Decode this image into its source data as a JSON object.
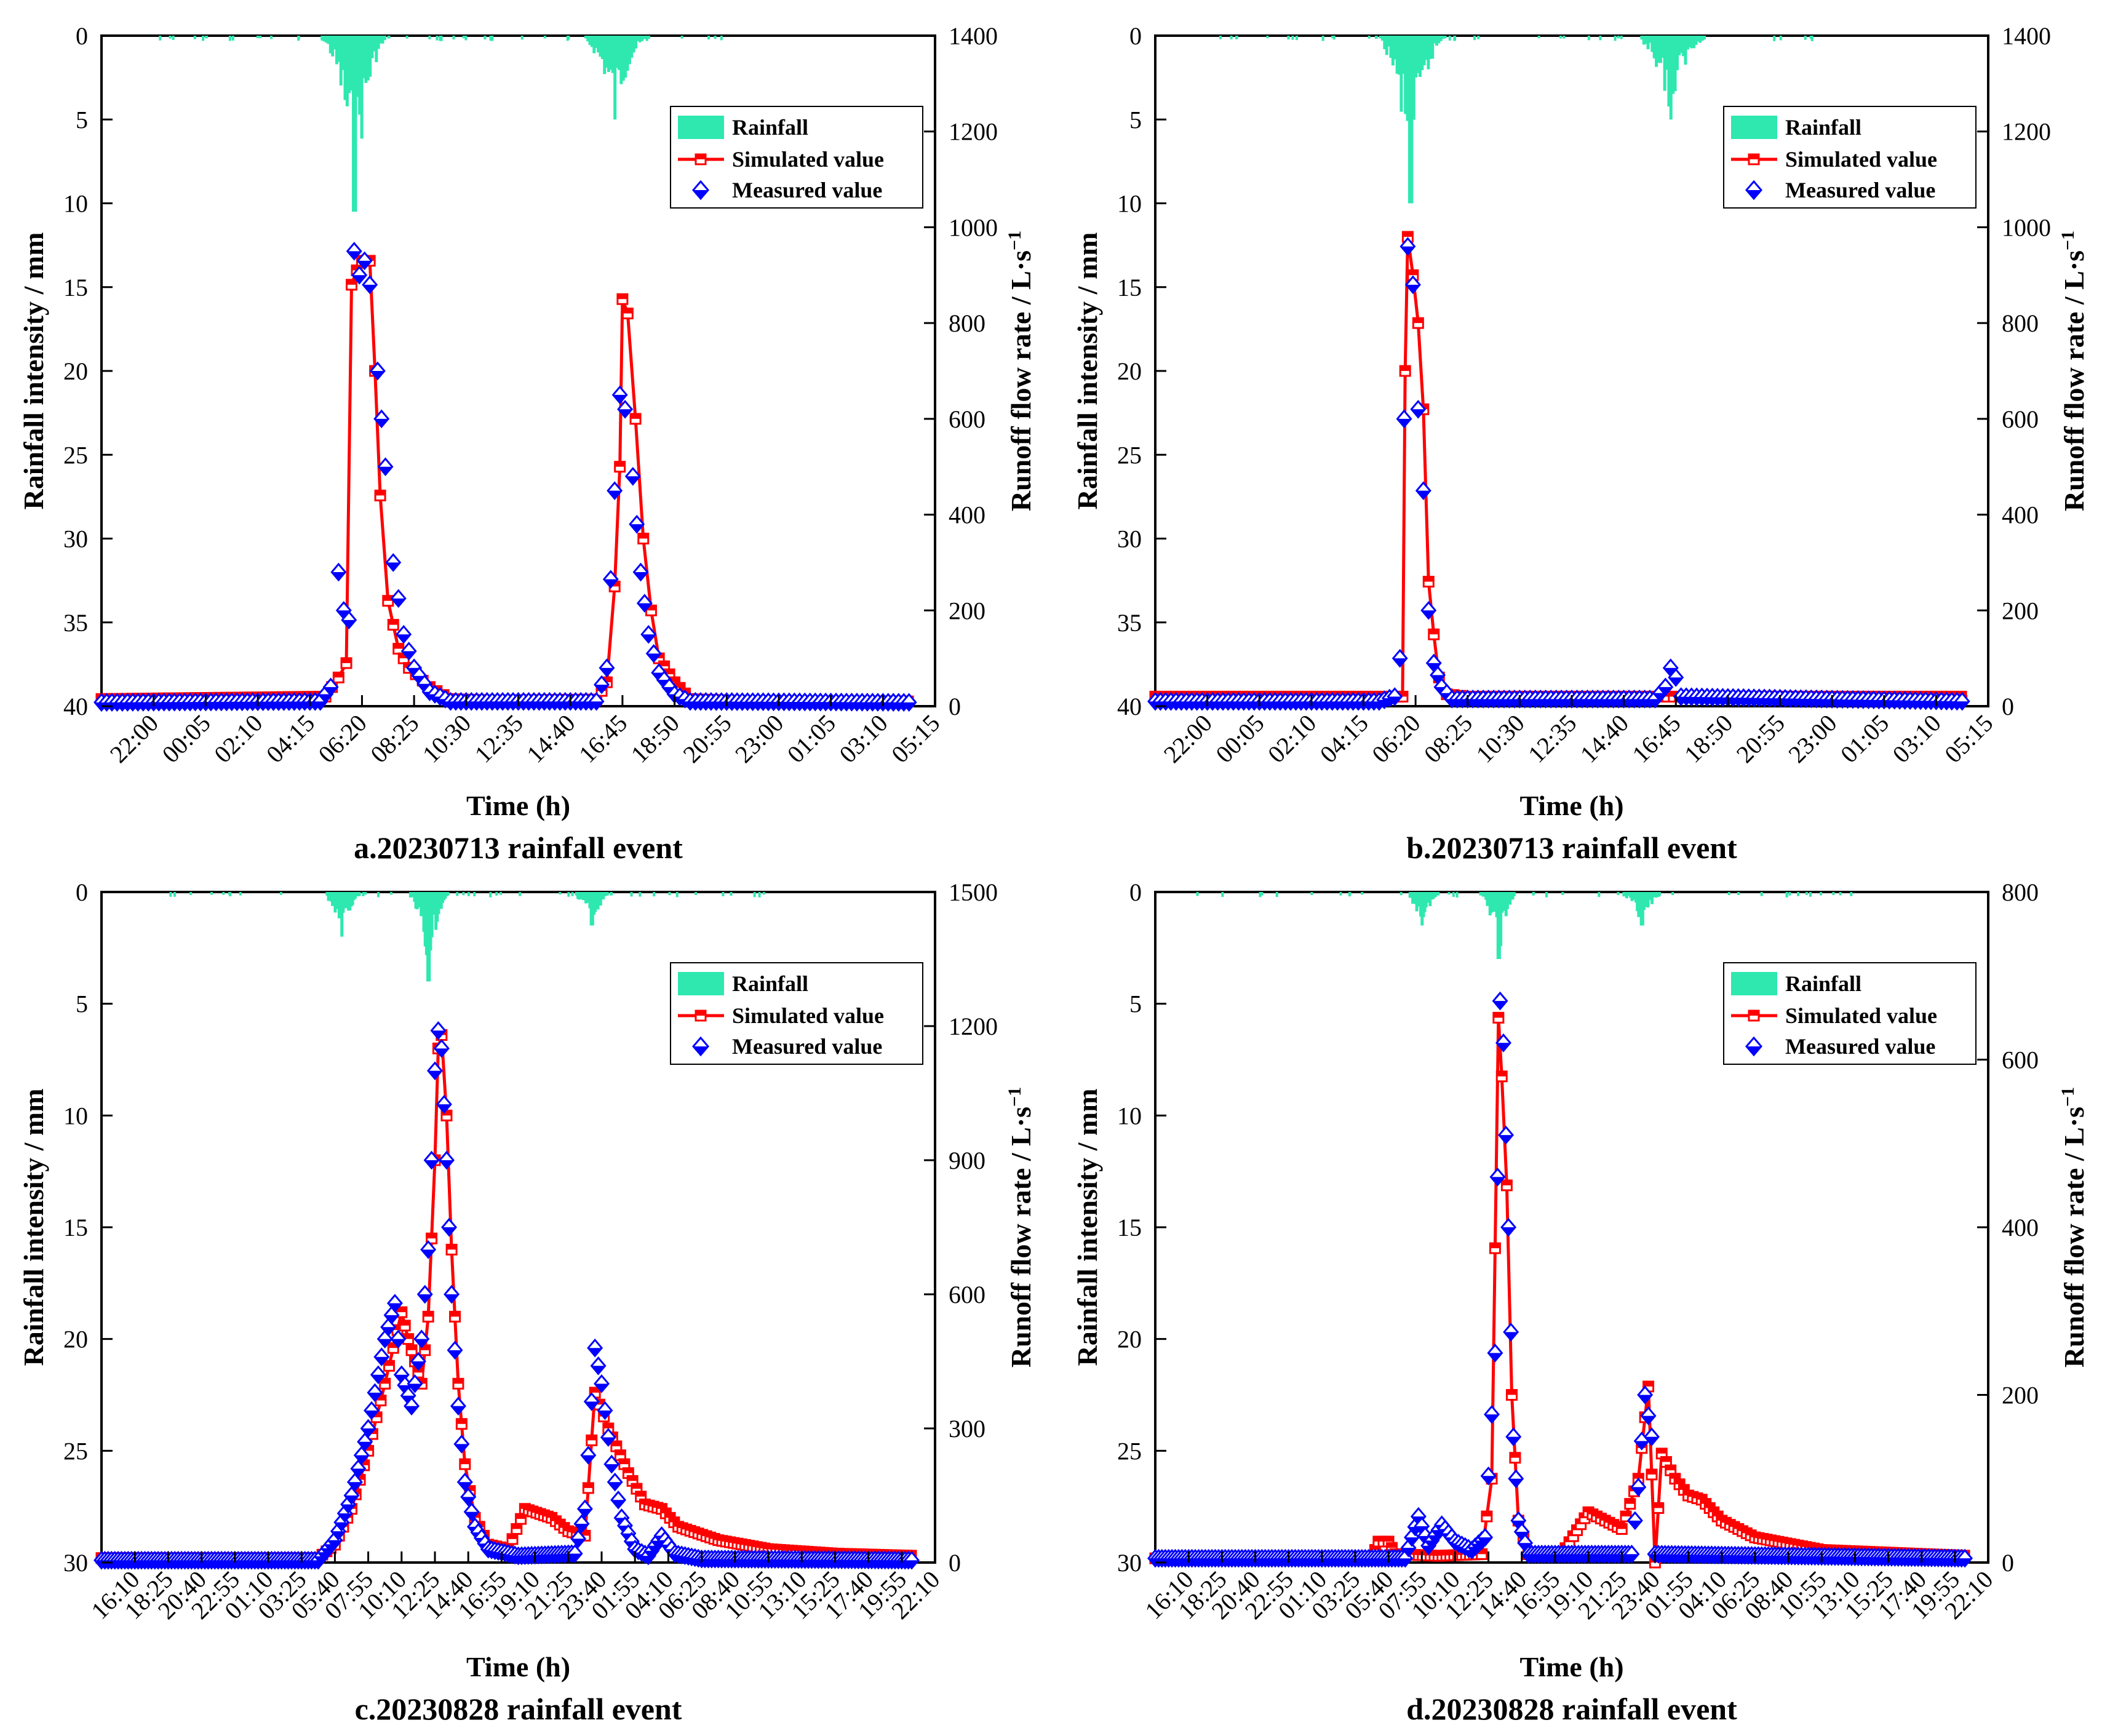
{
  "colors": {
    "rainfall": "#2ee8b0",
    "simulated": "#ff0000",
    "measured": "#0000ff",
    "axis": "#000000"
  },
  "chart_data": [
    {
      "id": "a",
      "type": "line",
      "caption": "a.20230713 rainfall event",
      "xlabel": "Time (h)",
      "ylabel_left": "Rainfall intensity / mm",
      "ylabel_right": "Runoff flow rate / L·s",
      "ylabel_right_exp": "−1",
      "x_ticks": [
        "22:00",
        "00:05",
        "02:10",
        "04:15",
        "06:20",
        "08:25",
        "10:30",
        "12:35",
        "14:40",
        "16:45",
        "18:50",
        "20:55",
        "23:00",
        "01:05",
        "03:10",
        "05:15"
      ],
      "y_left_ticks": [
        0,
        5,
        10,
        15,
        20,
        25,
        30,
        35,
        40
      ],
      "y_left_lim": [
        0,
        40
      ],
      "y_right_ticks": [
        0,
        200,
        400,
        600,
        800,
        1000,
        1200,
        1400
      ],
      "y_right_lim": [
        0,
        1400
      ],
      "legend": [
        "Rainfall",
        "Simulated value",
        "Measured value"
      ],
      "rainfall_peaks": [
        {
          "x": 4.85,
          "mm": 10.5
        },
        {
          "x": 9.85,
          "mm": 5.0
        }
      ],
      "simulated": [
        [
          0,
          15
        ],
        [
          4.3,
          20
        ],
        [
          4.55,
          60
        ],
        [
          4.7,
          90
        ],
        [
          4.8,
          880
        ],
        [
          4.9,
          910
        ],
        [
          5.0,
          930
        ],
        [
          5.15,
          930
        ],
        [
          5.25,
          700
        ],
        [
          5.35,
          440
        ],
        [
          5.5,
          220
        ],
        [
          5.7,
          120
        ],
        [
          5.9,
          80
        ],
        [
          6.3,
          40
        ],
        [
          6.7,
          15
        ],
        [
          7.5,
          12
        ],
        [
          9.5,
          14
        ],
        [
          9.7,
          50
        ],
        [
          9.85,
          250
        ],
        [
          9.95,
          500
        ],
        [
          10.0,
          850
        ],
        [
          10.1,
          820
        ],
        [
          10.25,
          600
        ],
        [
          10.4,
          350
        ],
        [
          10.55,
          200
        ],
        [
          10.7,
          100
        ],
        [
          11.0,
          50
        ],
        [
          11.3,
          15
        ],
        [
          12.5,
          10
        ],
        [
          15.6,
          10
        ]
      ],
      "measured": [
        [
          0,
          8
        ],
        [
          4.2,
          10
        ],
        [
          4.4,
          40
        ],
        [
          4.55,
          280
        ],
        [
          4.65,
          200
        ],
        [
          4.75,
          180
        ],
        [
          4.85,
          950
        ],
        [
          4.95,
          900
        ],
        [
          5.05,
          930
        ],
        [
          5.15,
          880
        ],
        [
          5.3,
          700
        ],
        [
          5.45,
          500
        ],
        [
          5.6,
          300
        ],
        [
          5.8,
          150
        ],
        [
          6.0,
          80
        ],
        [
          6.3,
          30
        ],
        [
          6.7,
          10
        ],
        [
          9.5,
          10
        ],
        [
          9.7,
          80
        ],
        [
          9.85,
          450
        ],
        [
          9.95,
          650
        ],
        [
          10.05,
          620
        ],
        [
          10.2,
          480
        ],
        [
          10.35,
          280
        ],
        [
          10.5,
          150
        ],
        [
          10.7,
          70
        ],
        [
          11.0,
          25
        ],
        [
          11.3,
          10
        ],
        [
          15.6,
          8
        ]
      ]
    },
    {
      "id": "b",
      "type": "line",
      "caption": "b.20230713 rainfall event",
      "xlabel": "Time (h)",
      "ylabel_left": "Rainfall intensity / mm",
      "ylabel_right": "Runoff flow rate / L·s",
      "ylabel_right_exp": "−1",
      "x_ticks": [
        "22:00",
        "00:05",
        "02:10",
        "04:15",
        "06:20",
        "08:25",
        "10:30",
        "12:35",
        "14:40",
        "16:45",
        "18:50",
        "20:55",
        "23:00",
        "01:05",
        "03:10",
        "05:15"
      ],
      "y_left_ticks": [
        0,
        5,
        10,
        15,
        20,
        25,
        30,
        35,
        40
      ],
      "y_left_lim": [
        0,
        40
      ],
      "y_right_ticks": [
        0,
        200,
        400,
        600,
        800,
        1000,
        1200,
        1400
      ],
      "y_right_lim": [
        0,
        1400
      ],
      "legend": [
        "Rainfall",
        "Simulated value",
        "Measured value"
      ],
      "rainfall_peaks": [
        {
          "x": 4.9,
          "mm": 10.0
        },
        {
          "x": 9.9,
          "mm": 5.0
        }
      ],
      "simulated": [
        [
          0,
          20
        ],
        [
          4.6,
          20
        ],
        [
          4.75,
          20
        ],
        [
          4.8,
          700
        ],
        [
          4.85,
          980
        ],
        [
          4.95,
          900
        ],
        [
          5.05,
          800
        ],
        [
          5.15,
          620
        ],
        [
          5.25,
          260
        ],
        [
          5.35,
          150
        ],
        [
          5.45,
          60
        ],
        [
          5.6,
          25
        ],
        [
          6.0,
          20
        ],
        [
          15.6,
          20
        ]
      ],
      "measured": [
        [
          0,
          10
        ],
        [
          4.3,
          10
        ],
        [
          4.6,
          20
        ],
        [
          4.7,
          100
        ],
        [
          4.78,
          600
        ],
        [
          4.85,
          960
        ],
        [
          4.95,
          880
        ],
        [
          5.05,
          620
        ],
        [
          5.15,
          450
        ],
        [
          5.25,
          200
        ],
        [
          5.35,
          90
        ],
        [
          5.5,
          40
        ],
        [
          5.7,
          15
        ],
        [
          9.6,
          15
        ],
        [
          9.8,
          40
        ],
        [
          9.9,
          80
        ],
        [
          10.0,
          60
        ],
        [
          10.1,
          20
        ],
        [
          15.6,
          10
        ]
      ]
    },
    {
      "id": "c",
      "type": "line",
      "caption": "c.20230828 rainfall event",
      "xlabel": "Time (h)",
      "ylabel_left": "Rainfall intensity / mm",
      "ylabel_right": "Runoff flow rate / L·s",
      "ylabel_right_exp": "−1",
      "x_ticks": [
        "16:10",
        "18:25",
        "20:40",
        "22:55",
        "01:10",
        "03:25",
        "05:40",
        "07:55",
        "10:10",
        "12:25",
        "14:40",
        "16:55",
        "19:10",
        "21:25",
        "23:40",
        "01:55",
        "04:10",
        "06:25",
        "08:40",
        "10:55",
        "13:10",
        "15:25",
        "17:40",
        "19:55",
        "22:10"
      ],
      "y_left_ticks": [
        0,
        5,
        10,
        15,
        20,
        25,
        30
      ],
      "y_left_lim": [
        0,
        30
      ],
      "y_right_ticks": [
        0,
        300,
        600,
        900,
        1200,
        1500
      ],
      "y_right_lim": [
        0,
        1500
      ],
      "legend": [
        "Rainfall",
        "Simulated value",
        "Measured value"
      ],
      "rainfall_peaks": [
        {
          "x": 9.8,
          "mm": 4.0
        },
        {
          "x": 7.2,
          "mm": 2.0
        },
        {
          "x": 14.7,
          "mm": 1.5
        }
      ],
      "simulated": [
        [
          0,
          10
        ],
        [
          6.5,
          10
        ],
        [
          7.0,
          40
        ],
        [
          7.5,
          120
        ],
        [
          8.0,
          250
        ],
        [
          8.5,
          400
        ],
        [
          9.0,
          560
        ],
        [
          9.2,
          500
        ],
        [
          9.4,
          450
        ],
        [
          9.6,
          400
        ],
        [
          9.8,
          550
        ],
        [
          10.0,
          900
        ],
        [
          10.1,
          1150
        ],
        [
          10.2,
          1180
        ],
        [
          10.35,
          1000
        ],
        [
          10.5,
          700
        ],
        [
          10.7,
          400
        ],
        [
          10.9,
          220
        ],
        [
          11.2,
          100
        ],
        [
          11.6,
          40
        ],
        [
          12.2,
          30
        ],
        [
          12.7,
          120
        ],
        [
          13.5,
          100
        ],
        [
          14.0,
          70
        ],
        [
          14.5,
          60
        ],
        [
          14.8,
          380
        ],
        [
          15.2,
          300
        ],
        [
          15.8,
          200
        ],
        [
          16.3,
          130
        ],
        [
          16.8,
          120
        ],
        [
          17.3,
          80
        ],
        [
          18.5,
          50
        ],
        [
          20,
          30
        ],
        [
          22,
          20
        ],
        [
          24.4,
          15
        ]
      ],
      "measured": [
        [
          0,
          5
        ],
        [
          6.5,
          5
        ],
        [
          7.0,
          50
        ],
        [
          7.5,
          150
        ],
        [
          8.0,
          300
        ],
        [
          8.5,
          500
        ],
        [
          8.8,
          580
        ],
        [
          9.0,
          420
        ],
        [
          9.3,
          350
        ],
        [
          9.6,
          500
        ],
        [
          9.8,
          700
        ],
        [
          10.0,
          1100
        ],
        [
          10.1,
          1190
        ],
        [
          10.2,
          1150
        ],
        [
          10.35,
          900
        ],
        [
          10.5,
          600
        ],
        [
          10.7,
          350
        ],
        [
          10.9,
          180
        ],
        [
          11.2,
          80
        ],
        [
          11.6,
          30
        ],
        [
          12.5,
          15
        ],
        [
          14.2,
          20
        ],
        [
          14.5,
          120
        ],
        [
          14.8,
          480
        ],
        [
          15.0,
          400
        ],
        [
          15.3,
          220
        ],
        [
          15.6,
          100
        ],
        [
          16.0,
          30
        ],
        [
          16.4,
          15
        ],
        [
          16.8,
          60
        ],
        [
          17.2,
          20
        ],
        [
          18,
          8
        ],
        [
          24.4,
          5
        ]
      ]
    },
    {
      "id": "d",
      "type": "line",
      "caption": "d.20230828 rainfall event",
      "xlabel": "Time (h)",
      "ylabel_left": "Rainfall intensity / mm",
      "ylabel_right": "Runoff flow rate / L·s",
      "ylabel_right_exp": "−1",
      "x_ticks": [
        "16:10",
        "18:25",
        "20:40",
        "22:55",
        "01:10",
        "03:25",
        "05:40",
        "07:55",
        "10:10",
        "12:25",
        "14:40",
        "16:55",
        "19:10",
        "21:25",
        "23:40",
        "01:55",
        "04:10",
        "06:25",
        "08:40",
        "10:55",
        "13:10",
        "15:25",
        "17:40",
        "19:55",
        "22:10"
      ],
      "y_left_ticks": [
        0,
        5,
        10,
        15,
        20,
        25,
        30
      ],
      "y_left_lim": [
        0,
        30
      ],
      "y_right_ticks": [
        0,
        200,
        400,
        600,
        800
      ],
      "y_right_lim": [
        0,
        800
      ],
      "legend": [
        "Rainfall",
        "Simulated value",
        "Measured value"
      ],
      "rainfall_peaks": [
        {
          "x": 10.3,
          "mm": 3.0
        },
        {
          "x": 8.0,
          "mm": 1.5
        },
        {
          "x": 14.6,
          "mm": 1.5
        }
      ],
      "simulated": [
        [
          0,
          5
        ],
        [
          6.5,
          5
        ],
        [
          6.7,
          25
        ],
        [
          7.0,
          25
        ],
        [
          7.2,
          10
        ],
        [
          8.5,
          8
        ],
        [
          9.8,
          10
        ],
        [
          10.1,
          100
        ],
        [
          10.3,
          650
        ],
        [
          10.4,
          580
        ],
        [
          10.55,
          450
        ],
        [
          10.7,
          200
        ],
        [
          10.9,
          50
        ],
        [
          11.2,
          10
        ],
        [
          12.2,
          10
        ],
        [
          13.0,
          60
        ],
        [
          13.5,
          50
        ],
        [
          14.0,
          40
        ],
        [
          14.5,
          100
        ],
        [
          14.8,
          210
        ],
        [
          15.0,
          0
        ],
        [
          15.2,
          130
        ],
        [
          15.6,
          100
        ],
        [
          16.0,
          80
        ],
        [
          16.4,
          75
        ],
        [
          17.0,
          50
        ],
        [
          18,
          30
        ],
        [
          20,
          15
        ],
        [
          24.4,
          8
        ]
      ],
      "measured": [
        [
          0,
          5
        ],
        [
          7.5,
          5
        ],
        [
          7.9,
          55
        ],
        [
          8.2,
          20
        ],
        [
          8.6,
          45
        ],
        [
          9.0,
          25
        ],
        [
          9.5,
          15
        ],
        [
          9.9,
          30
        ],
        [
          10.2,
          250
        ],
        [
          10.35,
          670
        ],
        [
          10.45,
          620
        ],
        [
          10.6,
          400
        ],
        [
          10.75,
          150
        ],
        [
          10.9,
          50
        ],
        [
          11.2,
          10
        ],
        [
          14.3,
          10
        ],
        [
          14.5,
          90
        ],
        [
          14.7,
          200
        ],
        [
          14.9,
          150
        ],
        [
          15.0,
          10
        ],
        [
          24.4,
          5
        ]
      ]
    }
  ]
}
